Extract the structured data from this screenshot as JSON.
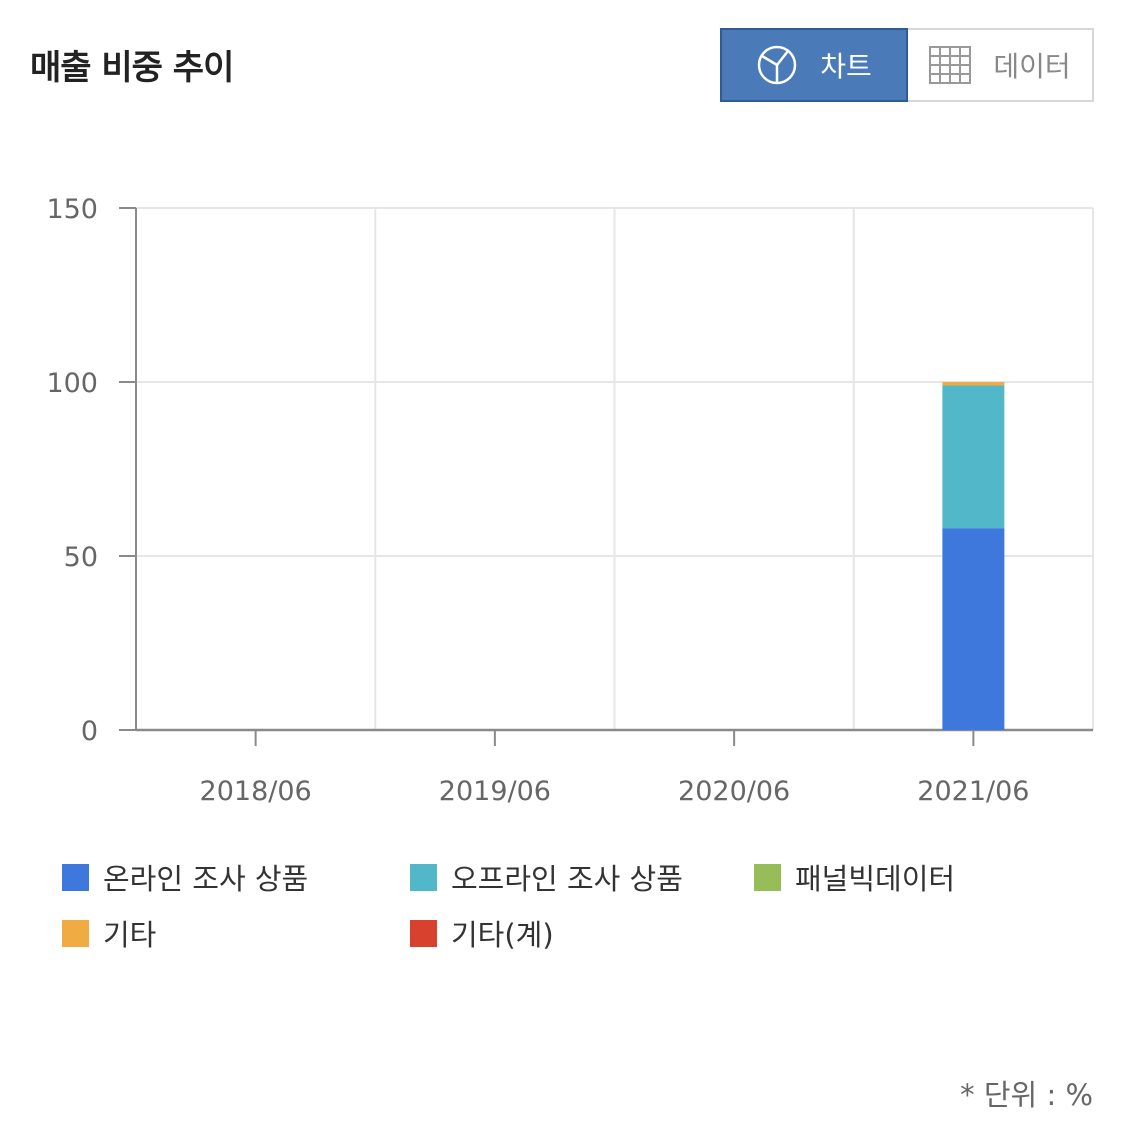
{
  "header": {
    "title": "매출 비중 추이",
    "chart_toggle_label": "차트",
    "data_toggle_label": "데이터",
    "chart_toggle_icon": "pie-chart-icon",
    "data_toggle_icon": "table-grid-icon",
    "active_toggle": "chart",
    "active_color": "#4a7ab8"
  },
  "chart_data": {
    "type": "bar",
    "stacked": true,
    "categories": [
      "2018/06",
      "2019/06",
      "2020/06",
      "2021/06"
    ],
    "series": [
      {
        "name": "온라인 조사 상품",
        "color": "#3f78dc",
        "values": [
          0,
          0,
          0,
          58
        ]
      },
      {
        "name": "오프라인 조사 상품",
        "color": "#52b7c8",
        "values": [
          0,
          0,
          0,
          41
        ]
      },
      {
        "name": "패널빅데이터",
        "color": "#97bd58",
        "values": [
          0,
          0,
          0,
          0
        ]
      },
      {
        "name": "기타",
        "color": "#f0ab42",
        "values": [
          0,
          0,
          0,
          1
        ]
      },
      {
        "name": "기타(계)",
        "color": "#d9412f",
        "values": [
          0,
          0,
          0,
          0
        ]
      }
    ],
    "yticks": [
      0,
      50,
      100,
      150
    ],
    "ylim": [
      0,
      150
    ],
    "grid": true,
    "legend_position": "bottom",
    "xlabel": "",
    "ylabel": ""
  },
  "footer": {
    "unit_note": "* 단위 : %"
  }
}
